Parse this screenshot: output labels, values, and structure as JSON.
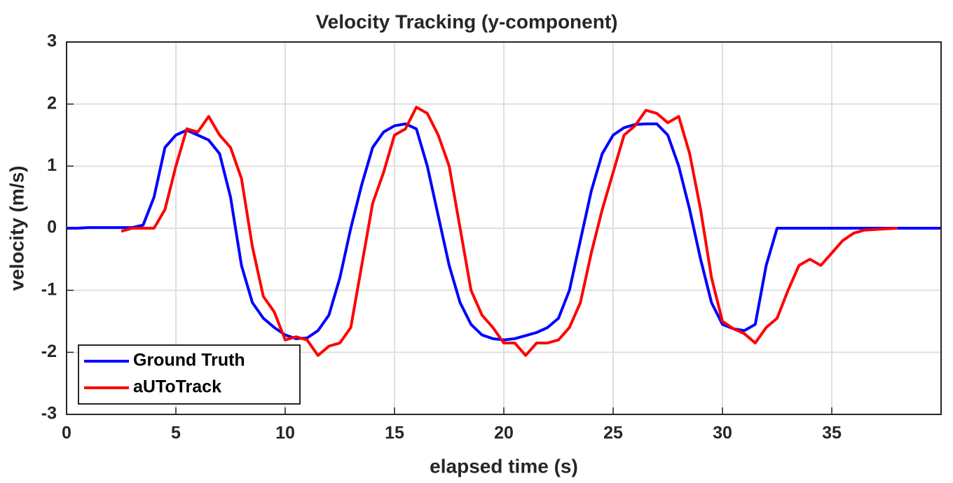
{
  "chart_data": {
    "type": "line",
    "title": "Velocity Tracking (y-component)",
    "x_label": "elapsed time (s)",
    "y_label": "velocity (m/s)",
    "xlim": [
      0,
      40
    ],
    "xticks": [
      0,
      5,
      10,
      15,
      20,
      25,
      30,
      35
    ],
    "ylim": [
      -3,
      3
    ],
    "yticks": [
      -3,
      -2,
      -1,
      0,
      1,
      2,
      3
    ],
    "grid": true,
    "legend_position": "lower left",
    "x": [
      0,
      0.5,
      1,
      1.5,
      2,
      2.5,
      3,
      3.5,
      4,
      4.5,
      5,
      5.5,
      6,
      6.5,
      7,
      7.5,
      8,
      8.5,
      9,
      9.5,
      10,
      10.5,
      11,
      11.5,
      12,
      12.5,
      13,
      13.5,
      14,
      14.5,
      15,
      15.5,
      16,
      16.5,
      17,
      17.5,
      18,
      18.5,
      19,
      19.5,
      20,
      20.5,
      21,
      21.5,
      22,
      22.5,
      23,
      23.5,
      24,
      24.5,
      25,
      25.5,
      26,
      26.5,
      27,
      27.5,
      28,
      28.5,
      29,
      29.5,
      30,
      30.5,
      31,
      31.5,
      32,
      32.5,
      33,
      33.5,
      34,
      34.5,
      35,
      35.5,
      36,
      36.5,
      37,
      37.5,
      38,
      38.5,
      39,
      39.5,
      40
    ],
    "series": [
      {
        "name": "Ground Truth",
        "color": "#0000ff",
        "values": [
          0,
          0,
          0.01,
          0.01,
          0.01,
          0.01,
          0.01,
          0.05,
          0.5,
          1.3,
          1.5,
          1.58,
          1.5,
          1.42,
          1.2,
          0.5,
          -0.6,
          -1.2,
          -1.45,
          -1.6,
          -1.72,
          -1.78,
          -1.77,
          -1.65,
          -1.4,
          -0.8,
          0,
          0.7,
          1.3,
          1.55,
          1.65,
          1.68,
          1.6,
          1.0,
          0.2,
          -0.6,
          -1.2,
          -1.55,
          -1.72,
          -1.78,
          -1.8,
          -1.78,
          -1.73,
          -1.68,
          -1.6,
          -1.45,
          -1.0,
          -0.2,
          0.6,
          1.2,
          1.5,
          1.62,
          1.67,
          1.68,
          1.68,
          1.5,
          1.0,
          0.3,
          -0.5,
          -1.2,
          -1.55,
          -1.62,
          -1.65,
          -1.55,
          -0.6,
          0,
          0,
          0,
          0,
          0,
          0,
          0,
          0,
          0,
          0,
          0,
          0,
          0,
          0,
          0,
          0
        ]
      },
      {
        "name": "aUToTrack",
        "color": "#ff0000",
        "values": [
          null,
          null,
          null,
          null,
          null,
          -0.05,
          0,
          0,
          0,
          0.3,
          1.0,
          1.6,
          1.55,
          1.8,
          1.5,
          1.3,
          0.8,
          -0.3,
          -1.1,
          -1.35,
          -1.8,
          -1.75,
          -1.8,
          -2.05,
          -1.9,
          -1.85,
          -1.6,
          -0.6,
          0.4,
          0.9,
          1.5,
          1.6,
          1.95,
          1.85,
          1.5,
          1.0,
          0,
          -1.0,
          -1.4,
          -1.6,
          -1.85,
          -1.85,
          -2.05,
          -1.85,
          -1.85,
          -1.8,
          -1.6,
          -1.2,
          -0.4,
          0.3,
          0.9,
          1.5,
          1.65,
          1.9,
          1.85,
          1.7,
          1.8,
          1.2,
          0.3,
          -0.8,
          -1.5,
          -1.62,
          -1.7,
          -1.85,
          -1.6,
          -1.45,
          -1.0,
          -0.6,
          -0.5,
          -0.6,
          -0.4,
          -0.2,
          -0.08,
          -0.03,
          -0.02,
          -0.01,
          0,
          null,
          null,
          null,
          null
        ]
      }
    ]
  }
}
